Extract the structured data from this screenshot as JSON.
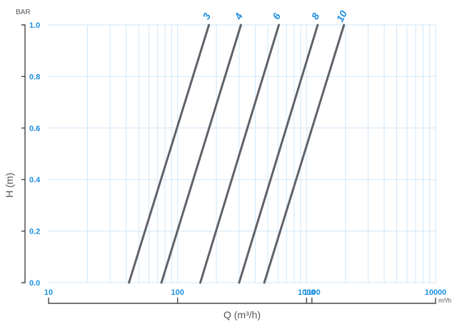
{
  "chart_data": {
    "type": "line",
    "title": "",
    "xlabel": "Q (m³/h)",
    "x_unit": "m³/h",
    "ylabel": "H (m)",
    "y_unit": "BAR",
    "x_scale": "log",
    "xlim": [
      10,
      10000
    ],
    "ylim": [
      0,
      1.0
    ],
    "grid": true,
    "x_ticks": [
      10,
      100,
      1000,
      1100,
      10000
    ],
    "y_ticks": [
      0.0,
      0.2,
      0.4,
      0.6,
      0.8,
      1.0
    ],
    "series": [
      {
        "name": "3",
        "x": [
          42,
          175
        ],
        "y": [
          0.0,
          1.0
        ]
      },
      {
        "name": "4",
        "x": [
          75,
          310
        ],
        "y": [
          0.0,
          1.0
        ]
      },
      {
        "name": "6",
        "x": [
          150,
          610
        ],
        "y": [
          0.0,
          1.0
        ]
      },
      {
        "name": "8",
        "x": [
          300,
          1220
        ],
        "y": [
          0.0,
          1.0
        ]
      },
      {
        "name": "10",
        "x": [
          470,
          1950
        ],
        "y": [
          0.0,
          1.0
        ]
      }
    ],
    "colors": {
      "curve": "#5f6268",
      "grid": "#cfe6f7",
      "tick": "#1a8fe0",
      "label": "#1a8fe0"
    }
  }
}
